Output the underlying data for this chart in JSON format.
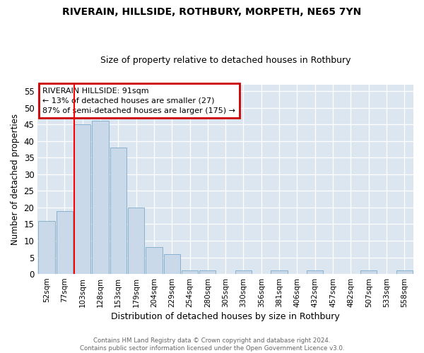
{
  "title1": "RIVERAIN, HILLSIDE, ROTHBURY, MORPETH, NE65 7YN",
  "title2": "Size of property relative to detached houses in Rothbury",
  "xlabel": "Distribution of detached houses by size in Rothbury",
  "ylabel": "Number of detached properties",
  "categories": [
    "52sqm",
    "77sqm",
    "103sqm",
    "128sqm",
    "153sqm",
    "179sqm",
    "204sqm",
    "229sqm",
    "254sqm",
    "280sqm",
    "305sqm",
    "330sqm",
    "356sqm",
    "381sqm",
    "406sqm",
    "432sqm",
    "457sqm",
    "482sqm",
    "507sqm",
    "533sqm",
    "558sqm"
  ],
  "values": [
    16,
    19,
    45,
    46,
    38,
    20,
    8,
    6,
    1,
    1,
    0,
    1,
    0,
    1,
    0,
    1,
    0,
    0,
    1,
    0,
    1
  ],
  "bar_color": "#c9d9ea",
  "bar_edge_color": "#7aaac8",
  "plot_bg_color": "#dce6f0",
  "fig_bg_color": "#ffffff",
  "grid_color": "#ffffff",
  "red_line_x": 1.55,
  "annotation_text": "RIVERAIN HILLSIDE: 91sqm\n← 13% of detached houses are smaller (27)\n87% of semi-detached houses are larger (175) →",
  "annotation_box_color": "#ffffff",
  "annotation_box_edge_color": "#cc0000",
  "footer_text": "Contains HM Land Registry data © Crown copyright and database right 2024.\nContains public sector information licensed under the Open Government Licence v3.0.",
  "ylim": [
    0,
    57
  ],
  "yticks": [
    0,
    5,
    10,
    15,
    20,
    25,
    30,
    35,
    40,
    45,
    50,
    55
  ]
}
